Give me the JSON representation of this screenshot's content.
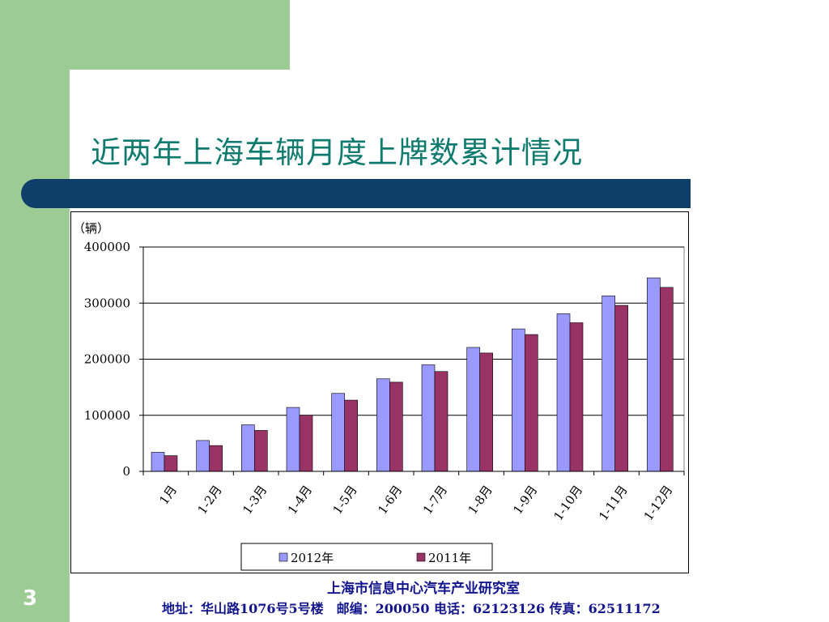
{
  "slide": {
    "title": "近两年上海车辆月度上牌数累计情况",
    "page_number": "3",
    "footer_org": "上海市信息中心汽车产业研究室",
    "footer_address": "地址：华山路1076号5号楼　邮编：200050  电话：62123126  传真：62511172"
  },
  "colors": {
    "green": "#9ccb94",
    "navy_bar": "#0f3e6b",
    "title": "#0f7a6e",
    "footer_text": "#12158c",
    "series_2012": "#9999ff",
    "series_2011": "#993366"
  },
  "chart_data": {
    "type": "bar",
    "title": "",
    "ylabel": "（辆）",
    "xlabel": "",
    "ylim": [
      0,
      400000
    ],
    "yticks": [
      "0",
      "100000",
      "200000",
      "300000",
      "400000"
    ],
    "grid": true,
    "legend_position": "bottom",
    "categories": [
      "1月",
      "1-2月",
      "1-3月",
      "1-4月",
      "1-5月",
      "1-6月",
      "1-7月",
      "1-8月",
      "1-9月",
      "1-10月",
      "1-11月",
      "1-12月"
    ],
    "series": [
      {
        "name": "2012年",
        "color": "#9999ff",
        "values": [
          34000,
          55000,
          83000,
          114000,
          139000,
          165000,
          190000,
          221000,
          254000,
          281000,
          313000,
          345000
        ]
      },
      {
        "name": "2011年",
        "color": "#993366",
        "values": [
          28000,
          46000,
          73000,
          100000,
          127000,
          159000,
          178000,
          211000,
          244000,
          265000,
          296000,
          328000
        ]
      }
    ]
  }
}
